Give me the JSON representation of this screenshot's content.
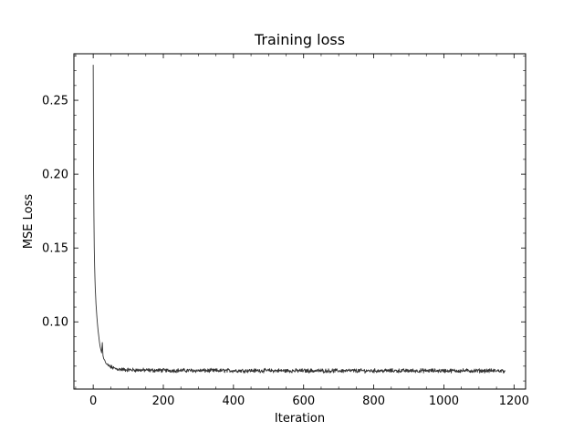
{
  "chart_data": {
    "type": "line",
    "title": "Training loss",
    "xlabel": "Iteration",
    "ylabel": "MSE Loss",
    "xlim": [
      -55,
      1233
    ],
    "ylim": [
      0.0545,
      0.2815
    ],
    "x_ticks": [
      0,
      200,
      400,
      600,
      800,
      1000,
      1200
    ],
    "x_tick_labels": [
      "0",
      "200",
      "400",
      "600",
      "800",
      "1000",
      "1200"
    ],
    "y_ticks": [
      0.1,
      0.15,
      0.2,
      0.25
    ],
    "y_tick_labels": [
      "0.10",
      "0.15",
      "0.20",
      "0.25"
    ],
    "x_minor_step": 50,
    "y_minor_step": 0.01,
    "tick_direction": "in",
    "ticks_on_all_sides": true,
    "grid": false,
    "legend": "none",
    "series": [
      {
        "color": "#333333",
        "x": [
          0,
          1,
          2,
          3,
          4,
          5,
          6,
          7,
          8,
          10,
          12,
          14,
          16,
          18,
          20,
          22,
          24,
          26,
          28,
          30,
          33,
          36,
          40,
          45,
          50,
          55,
          60,
          70,
          80,
          90,
          100,
          120,
          140,
          160,
          180,
          200,
          250,
          300,
          350,
          400,
          450,
          500,
          550,
          600,
          650,
          700,
          750,
          800,
          850,
          900,
          950,
          1000,
          1050,
          1100,
          1150,
          1175
        ],
        "values": [
          0.274,
          0.205,
          0.172,
          0.15,
          0.138,
          0.129,
          0.122,
          0.117,
          0.112,
          0.105,
          0.099,
          0.094,
          0.09,
          0.086,
          0.083,
          0.081,
          0.079,
          0.086,
          0.077,
          0.075,
          0.074,
          0.072,
          0.071,
          0.07,
          0.0695,
          0.069,
          0.0685,
          0.068,
          0.0678,
          0.0676,
          0.0675,
          0.0674,
          0.0673,
          0.0672,
          0.0672,
          0.0671,
          0.0671,
          0.067,
          0.067,
          0.067,
          0.067,
          0.067,
          0.0669,
          0.0669,
          0.0669,
          0.0669,
          0.0669,
          0.0669,
          0.0669,
          0.0669,
          0.0669,
          0.0669,
          0.0669,
          0.0669,
          0.0669,
          0.0668
        ],
        "noise_amplitude": 0.0011,
        "noise_start_x": 40,
        "sample_step": 1
      }
    ]
  }
}
